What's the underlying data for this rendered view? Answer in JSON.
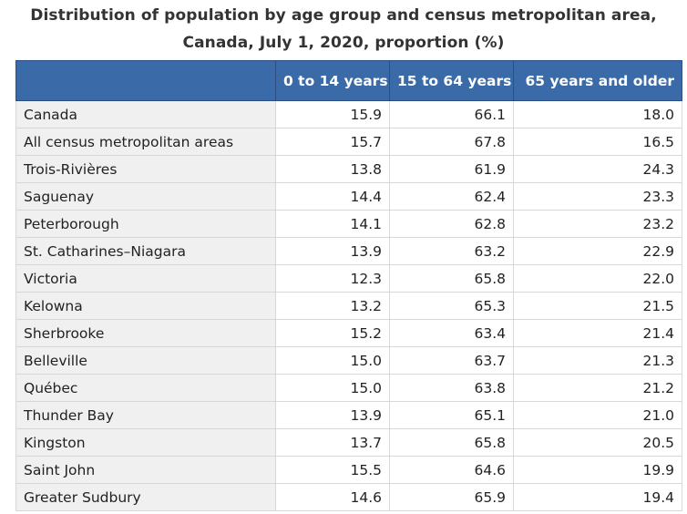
{
  "title_line1": "Distribution of population by age group and census metropolitan area,",
  "title_line2": "Canada, July 1, 2020, proportion (%)",
  "colors": {
    "header_background": "#3b6aa8",
    "header_text": "#ffffff",
    "label_cell_background": "#f0f0f0"
  },
  "chart_data": {
    "type": "table",
    "title": "Distribution of population by age group and census metropolitan area, Canada, July 1, 2020, proportion (%)",
    "columns": [
      "",
      "0 to 14 years",
      "15 to 64 years",
      "65 years and older"
    ],
    "rows": [
      {
        "label": "Canada",
        "values": [
          "15.9",
          "66.1",
          "18.0"
        ]
      },
      {
        "label": "All census metropolitan areas",
        "values": [
          "15.7",
          "67.8",
          "16.5"
        ]
      },
      {
        "label": "Trois-Rivières",
        "values": [
          "13.8",
          "61.9",
          "24.3"
        ]
      },
      {
        "label": "Saguenay",
        "values": [
          "14.4",
          "62.4",
          "23.3"
        ]
      },
      {
        "label": "Peterborough",
        "values": [
          "14.1",
          "62.8",
          "23.2"
        ]
      },
      {
        "label": "St. Catharines–Niagara",
        "values": [
          "13.9",
          "63.2",
          "22.9"
        ]
      },
      {
        "label": "Victoria",
        "values": [
          "12.3",
          "65.8",
          "22.0"
        ]
      },
      {
        "label": "Kelowna",
        "values": [
          "13.2",
          "65.3",
          "21.5"
        ]
      },
      {
        "label": "Sherbrooke",
        "values": [
          "15.2",
          "63.4",
          "21.4"
        ]
      },
      {
        "label": "Belleville",
        "values": [
          "15.0",
          "63.7",
          "21.3"
        ]
      },
      {
        "label": "Québec",
        "values": [
          "15.0",
          "63.8",
          "21.2"
        ]
      },
      {
        "label": "Thunder Bay",
        "values": [
          "13.9",
          "65.1",
          "21.0"
        ]
      },
      {
        "label": "Kingston",
        "values": [
          "13.7",
          "65.8",
          "20.5"
        ]
      },
      {
        "label": "Saint John",
        "values": [
          "15.5",
          "64.6",
          "19.9"
        ]
      },
      {
        "label": "Greater Sudbury",
        "values": [
          "14.6",
          "65.9",
          "19.4"
        ]
      }
    ]
  }
}
